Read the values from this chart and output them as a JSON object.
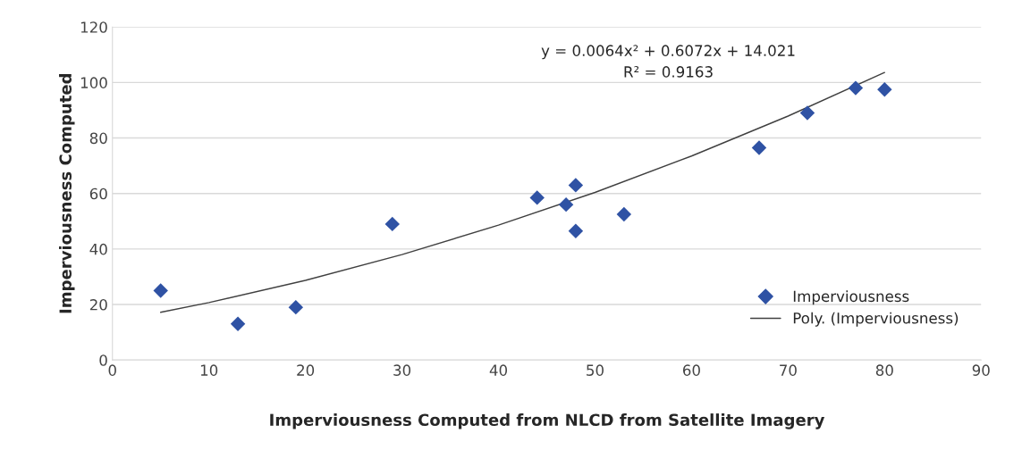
{
  "chart_data": {
    "type": "scatter",
    "xlabel": "Imperviousness Computed from NLCD from Satellite Imagery",
    "ylabel": "Imperviousness Computed",
    "series": [
      {
        "name": "Imperviousness",
        "color": "#2f52a4",
        "marker": "diamond",
        "x": [
          5,
          13,
          19,
          29,
          44,
          47,
          48,
          48,
          53,
          67,
          72,
          77,
          80
        ],
        "values": [
          25,
          13,
          19,
          49,
          58.5,
          56,
          63,
          46.5,
          52.5,
          76.5,
          89,
          98,
          97.5
        ]
      },
      {
        "name": "Poly. (Imperviousness)",
        "type": "line",
        "color": "#404040",
        "marker": "none",
        "line_style": "solid",
        "x": [
          5,
          10,
          20,
          30,
          40,
          50,
          60,
          70,
          80
        ],
        "values": [
          17.2,
          20.7,
          28.7,
          38.0,
          48.6,
          60.4,
          73.5,
          87.9,
          103.6
        ]
      }
    ],
    "annotations": [
      "y = 0.0064x² + 0.6072x + 14.021\nR² = 0.9163"
    ],
    "xlim": [
      0,
      90
    ],
    "xticks": [
      0,
      10,
      20,
      30,
      40,
      50,
      60,
      70,
      80,
      90
    ],
    "ylim": [
      0,
      120
    ],
    "yticks": [
      0,
      20,
      40,
      60,
      80,
      100,
      120
    ],
    "grid": "y",
    "legend": "bottom right"
  }
}
